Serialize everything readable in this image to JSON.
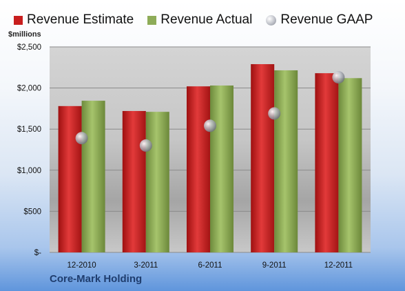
{
  "unit_label": "$millions",
  "company": "Core-Mark Holding",
  "colors": {
    "estimate": "#c81e1e",
    "actual": "#8eac58",
    "gaap": "#b9bcc4",
    "plot_bg": "#c9c9c9",
    "grid": "#8a8a8a"
  },
  "chart_data": {
    "type": "bar",
    "categories": [
      "12-2010",
      "3-2011",
      "6-2011",
      "9-2011",
      "12-2011"
    ],
    "series": [
      {
        "name": "Revenue Estimate",
        "kind": "bar",
        "color": "#c81e1e",
        "values": [
          1780,
          1720,
          2020,
          2290,
          2180
        ]
      },
      {
        "name": "Revenue Actual",
        "kind": "bar",
        "color": "#8eac58",
        "values": [
          1845,
          1710,
          2030,
          2215,
          2120
        ]
      },
      {
        "name": "Revenue GAAP",
        "kind": "marker",
        "color": "#b9bcc4",
        "values": [
          1390,
          1300,
          1540,
          1690,
          2130
        ]
      }
    ],
    "y_ticks": [
      0,
      500,
      1000,
      1500,
      2000,
      2500
    ],
    "y_tick_labels": [
      "$-",
      "$500",
      "$1,000",
      "$1,500",
      "$2,000",
      "$2,500"
    ],
    "ylim": [
      0,
      2500
    ],
    "grid": true,
    "legend_position": "top"
  }
}
